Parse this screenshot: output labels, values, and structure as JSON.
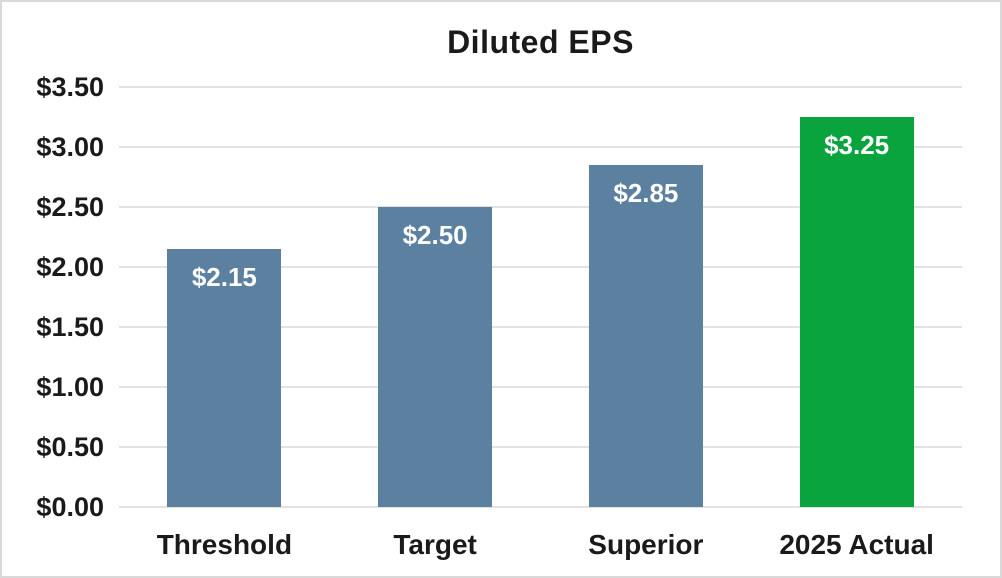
{
  "colors": {
    "bar_default": "#5B80A0",
    "bar_highlight": "#0AA43E",
    "gridline": "#E2E2E2",
    "frame_border": "#D9D9D9",
    "axis_text": "#1A1A1A",
    "bar_label_text": "#FFFFFF",
    "background": "#FFFFFF"
  },
  "chart_data": {
    "type": "bar",
    "title": "Diluted EPS",
    "categories": [
      "Threshold",
      "Target",
      "Superior",
      "2025 Actual"
    ],
    "values": [
      2.15,
      2.5,
      2.85,
      3.25
    ],
    "value_labels": [
      "$2.15",
      "$2.50",
      "$2.85",
      "$3.25"
    ],
    "bar_colors": [
      "#5B80A0",
      "#5B80A0",
      "#5B80A0",
      "#0AA43E"
    ],
    "xlabel": "",
    "ylabel": "",
    "ylim": [
      0,
      3.5
    ],
    "ytick_step": 0.5,
    "ytick_labels": [
      "$0.00",
      "$0.50",
      "$1.00",
      "$1.50",
      "$2.00",
      "$2.50",
      "$3.00",
      "$3.50"
    ],
    "grid": true,
    "legend": false
  }
}
